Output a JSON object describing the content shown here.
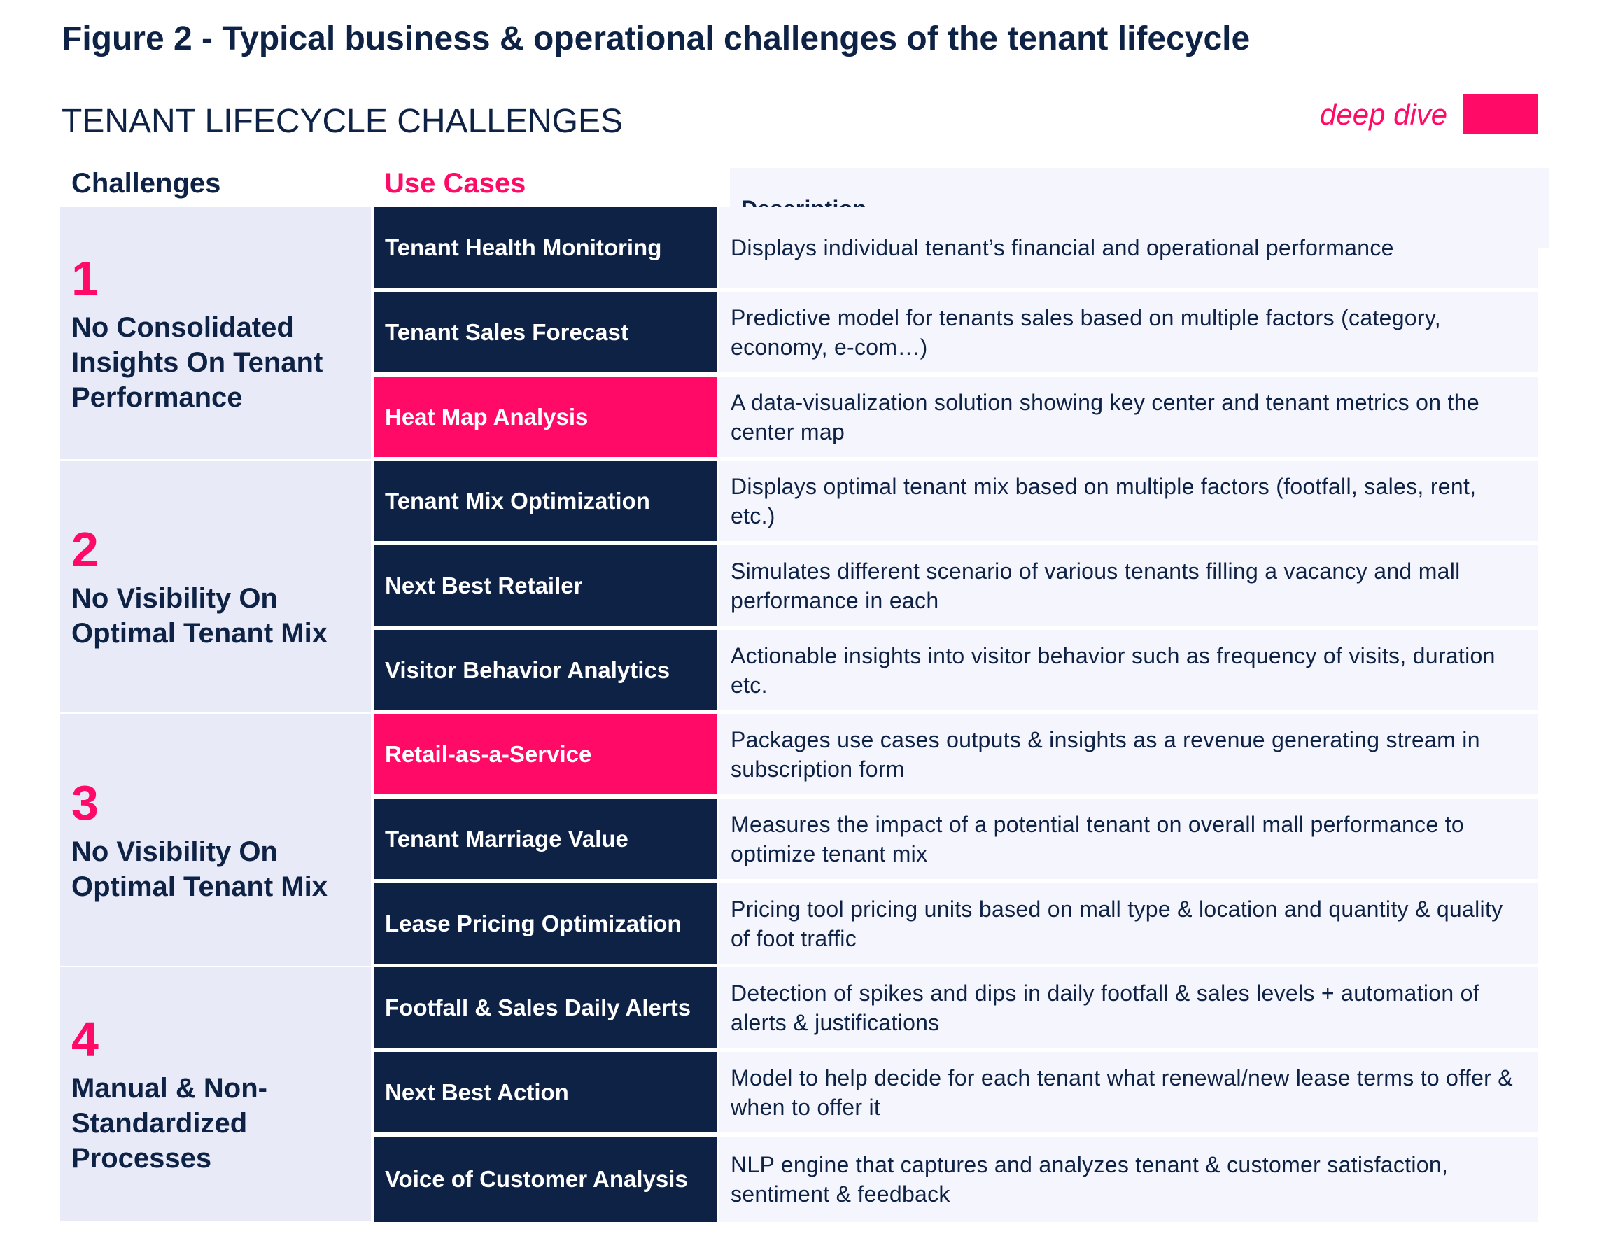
{
  "figure_title": "Figure 2 - Typical business & operational challenges of the tenant lifecycle",
  "section_title": "TENANT LIFECYCLE CHALLENGES",
  "legend": {
    "label": "deep dive",
    "color": "#ff0a66"
  },
  "headers": {
    "challenges": "Challenges",
    "use_cases": "Use Cases",
    "description": "Description"
  },
  "colors": {
    "navy": "#0e2245",
    "pink": "#ff0a66",
    "challenge_bg": "#e8eaf8",
    "desc_bg": "#f4f5fd"
  },
  "challenges": [
    {
      "number": "1",
      "text": "No Consolidated Insights On Tenant Performance"
    },
    {
      "number": "2",
      "text": "No Visibility On Optimal Tenant Mix"
    },
    {
      "number": "3",
      "text": "No Visibility On Optimal Tenant Mix"
    },
    {
      "number": "4",
      "text": "Manual & Non-Standardized Processes"
    }
  ],
  "rows": [
    {
      "use_case": "Tenant Health Monitoring",
      "deep_dive": false,
      "description": "Displays individual tenant’s financial and operational performance"
    },
    {
      "use_case": "Tenant Sales Forecast",
      "deep_dive": false,
      "description": "Predictive model for tenants sales based on multiple factors (category, economy, e-com…)"
    },
    {
      "use_case": "Heat Map Analysis",
      "deep_dive": true,
      "description": "A data-visualization solution showing key center and tenant metrics on the center map"
    },
    {
      "use_case": "Tenant Mix Optimization",
      "deep_dive": false,
      "description": "Displays optimal tenant mix based on multiple factors (footfall, sales, rent, etc.)"
    },
    {
      "use_case": "Next Best Retailer",
      "deep_dive": false,
      "description": "Simulates different scenario of various tenants filling a vacancy and mall performance in each"
    },
    {
      "use_case": "Visitor Behavior Analytics",
      "deep_dive": false,
      "description": "Actionable insights into visitor behavior such as frequency of visits, duration etc."
    },
    {
      "use_case": "Retail-as-a-Service",
      "deep_dive": true,
      "description": "Packages use cases outputs & insights as a revenue generating stream in subscription form"
    },
    {
      "use_case": "Tenant Marriage Value",
      "deep_dive": false,
      "description": "Measures the impact of a potential tenant on overall mall performance to optimize tenant mix"
    },
    {
      "use_case": "Lease Pricing Optimization",
      "deep_dive": false,
      "description": "Pricing tool pricing units based on mall type & location and quantity & quality of foot traffic"
    },
    {
      "use_case": "Footfall & Sales Daily Alerts",
      "deep_dive": false,
      "description": "Detection of spikes and dips in daily footfall & sales levels + automation of alerts & justifications"
    },
    {
      "use_case": "Next Best Action",
      "deep_dive": false,
      "description": "Model to help decide for each tenant what renewal/new lease terms to offer & when to offer it"
    },
    {
      "use_case": "Voice of Customer Analysis",
      "deep_dive": false,
      "description": "NLP engine that captures and analyzes tenant & customer satisfaction, sentiment & feedback"
    }
  ]
}
